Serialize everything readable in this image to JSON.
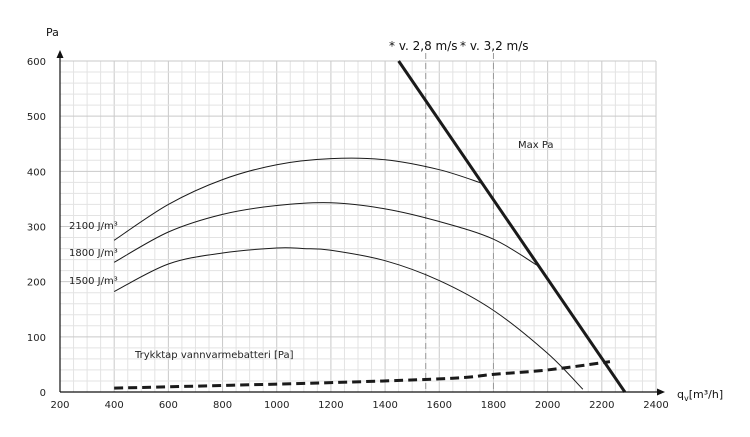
{
  "chart_data": {
    "type": "line",
    "x_axis": {
      "label": "q",
      "label_sub": "v",
      "label_unit": "[m³/h]",
      "min": 200,
      "max": 2400,
      "ticks": [
        200,
        400,
        600,
        800,
        1000,
        1200,
        1400,
        1600,
        1800,
        2000,
        2200,
        2400
      ]
    },
    "y_axis": {
      "label": "Pa",
      "min": 0,
      "max": 600,
      "ticks": [
        0,
        100,
        200,
        300,
        400,
        500,
        600
      ]
    },
    "grid": true,
    "series": [
      {
        "name": "2100 J/m³",
        "line": "solid",
        "weight": "thin",
        "points": [
          [
            400,
            275
          ],
          [
            600,
            340
          ],
          [
            800,
            385
          ],
          [
            1000,
            412
          ],
          [
            1200,
            423
          ],
          [
            1400,
            421
          ],
          [
            1600,
            403
          ],
          [
            1760,
            378
          ]
        ]
      },
      {
        "name": "1800 J/m³",
        "line": "solid",
        "weight": "thin",
        "points": [
          [
            400,
            235
          ],
          [
            600,
            290
          ],
          [
            800,
            322
          ],
          [
            1000,
            338
          ],
          [
            1200,
            343
          ],
          [
            1400,
            332
          ],
          [
            1600,
            309
          ],
          [
            1800,
            277
          ],
          [
            1960,
            230
          ]
        ]
      },
      {
        "name": "1500 J/m³",
        "line": "solid",
        "weight": "thin",
        "points": [
          [
            400,
            182
          ],
          [
            600,
            232
          ],
          [
            800,
            252
          ],
          [
            1000,
            261
          ],
          [
            1100,
            260
          ],
          [
            1200,
            257
          ],
          [
            1400,
            238
          ],
          [
            1600,
            202
          ],
          [
            1800,
            148
          ],
          [
            2000,
            70
          ],
          [
            2130,
            5
          ]
        ]
      },
      {
        "name": "Max Pa",
        "line": "solid",
        "weight": "thick",
        "points": [
          [
            1450,
            600
          ],
          [
            2285,
            0
          ]
        ]
      },
      {
        "name": "Trykktap vannvarmebatteri [Pa]",
        "line": "dashed",
        "weight": "thick",
        "points": [
          [
            400,
            7
          ],
          [
            1200,
            17
          ],
          [
            1650,
            25
          ],
          [
            1800,
            32
          ],
          [
            2000,
            40
          ],
          [
            2230,
            55
          ]
        ]
      }
    ],
    "velocity_lines": [
      {
        "label": "* v. 2,8 m/s",
        "x": 1550
      },
      {
        "label": "* v. 3,2 m/s",
        "x": 1800
      }
    ]
  },
  "labels": {
    "max_pa": "Max Pa",
    "trykktap": "Trykktap vannvarmebatteri [Pa]",
    "jm_2100": "2100 J/m³",
    "jm_1800": "1800 J/m³",
    "jm_1500": "1500 J/m³",
    "v1": "* v. 2,8 m/s",
    "v2": "* v. 3,2 m/s"
  }
}
